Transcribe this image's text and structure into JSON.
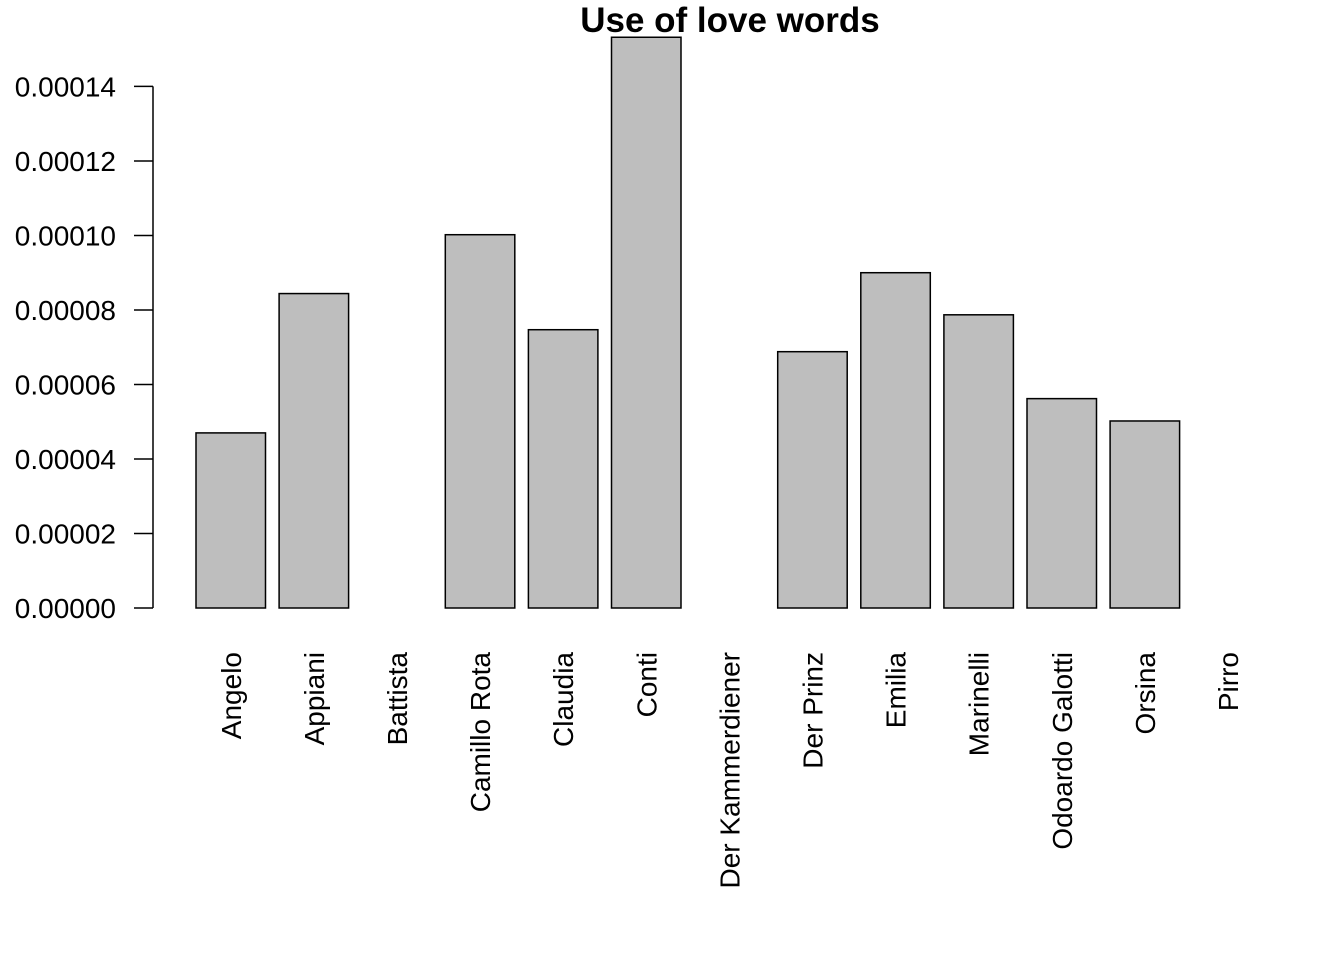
{
  "chart_data": {
    "type": "bar",
    "title": "Use of love words",
    "categories": [
      "Angelo",
      "Appiani",
      "Battista",
      "Camillo Rota",
      "Claudia",
      "Conti",
      "Der Kammerdiener",
      "Der Prinz",
      "Emilia",
      "Marinelli",
      "Odoardo Galotti",
      "Orsina",
      "Pirro"
    ],
    "values": [
      4.7e-05,
      8.44e-05,
      0,
      0.0001002,
      7.47e-05,
      0.0001532,
      0,
      6.88e-05,
      9e-05,
      7.87e-05,
      5.62e-05,
      5.02e-05,
      0
    ],
    "color": "#bebebe",
    "ylim": [
      0,
      0.000153
    ],
    "yticks": [
      {
        "value": 0,
        "label": "0.00000"
      },
      {
        "value": 2e-05,
        "label": "0.00002"
      },
      {
        "value": 4e-05,
        "label": "0.00004"
      },
      {
        "value": 6e-05,
        "label": "0.00006"
      },
      {
        "value": 8e-05,
        "label": "0.00008"
      },
      {
        "value": 0.0001,
        "label": "0.00010"
      },
      {
        "value": 0.00012,
        "label": "0.00012"
      },
      {
        "value": 0.00014,
        "label": "0.00014"
      }
    ]
  }
}
